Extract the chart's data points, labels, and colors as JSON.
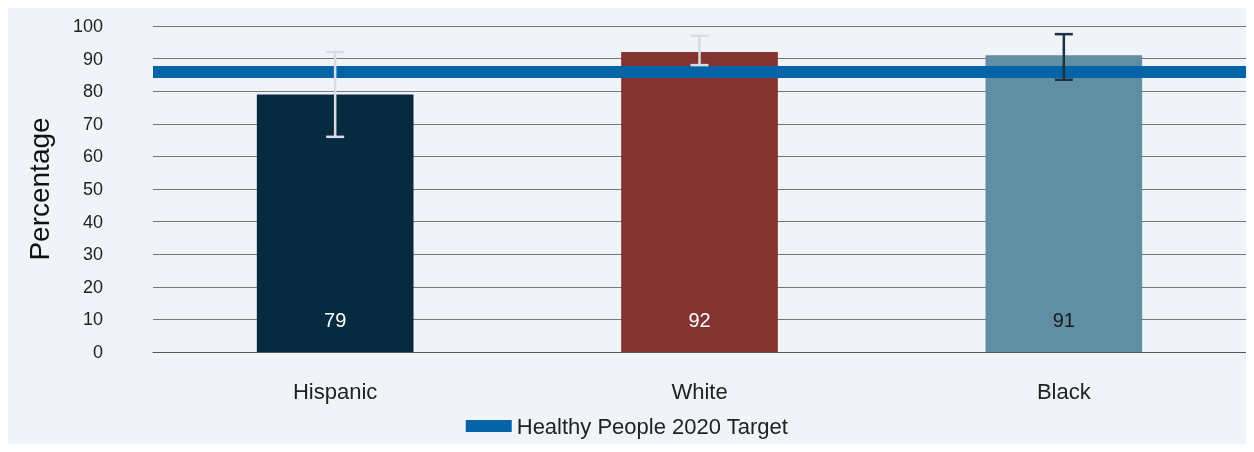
{
  "chart_data": {
    "type": "bar",
    "ylabel": "Percentage",
    "categories": [
      "Hispanic",
      "White",
      "Black"
    ],
    "values": [
      79,
      92,
      91
    ],
    "colors": [
      "#062a40",
      "#833330",
      "#608ea3"
    ],
    "errors": [
      [
        66,
        92
      ],
      [
        88,
        97
      ],
      [
        83.5,
        97.5
      ]
    ],
    "data_labels": true,
    "ylim": [
      0,
      100
    ],
    "yticks": [
      0,
      10,
      20,
      30,
      40,
      50,
      60,
      70,
      80,
      90,
      100
    ],
    "grid": "y",
    "ref_lines": [
      {
        "axis": "y",
        "value": 86,
        "label": "Healthy People 2020 Target",
        "color": "#0563a8"
      }
    ],
    "legend": "bottom"
  }
}
